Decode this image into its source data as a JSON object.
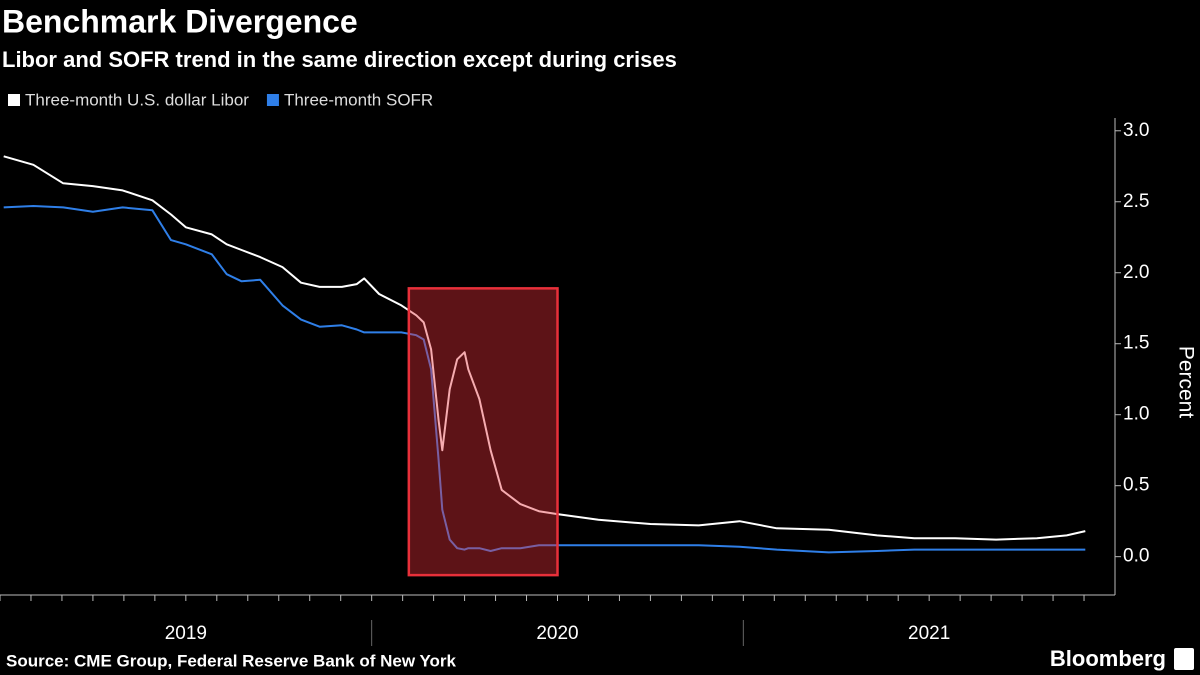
{
  "chart_data": {
    "type": "line",
    "title": "Benchmark Divergence",
    "subtitle": "Libor and SOFR trend in the same direction except during crises",
    "y_label": "Percent",
    "source": "Source: CME Group, Federal Reserve Bank of New York",
    "brand": "Bloomberg",
    "x": [
      2019.01,
      2019.09,
      2019.17,
      2019.25,
      2019.33,
      2019.41,
      2019.46,
      2019.5,
      2019.57,
      2019.61,
      2019.65,
      2019.7,
      2019.76,
      2019.81,
      2019.86,
      2019.92,
      2019.96,
      2019.98,
      2020.02,
      2020.08,
      2020.12,
      2020.14,
      2020.16,
      2020.18,
      2020.19,
      2020.21,
      2020.23,
      2020.25,
      2020.26,
      2020.29,
      2020.32,
      2020.35,
      2020.4,
      2020.45,
      2020.5,
      2020.61,
      2020.75,
      2020.88,
      2020.99,
      2021.09,
      2021.23,
      2021.36,
      2021.46,
      2021.57,
      2021.68,
      2021.79,
      2021.87,
      2021.92
    ],
    "series": [
      {
        "name": "Three-month U.S. dollar Libor",
        "color": "#ffffff",
        "values": [
          2.82,
          2.76,
          2.63,
          2.61,
          2.58,
          2.51,
          2.41,
          2.32,
          2.27,
          2.2,
          2.16,
          2.11,
          2.04,
          1.93,
          1.9,
          1.9,
          1.92,
          1.96,
          1.85,
          1.77,
          1.7,
          1.65,
          1.46,
          0.96,
          0.75,
          1.18,
          1.39,
          1.44,
          1.32,
          1.11,
          0.75,
          0.47,
          0.37,
          0.32,
          0.3,
          0.26,
          0.23,
          0.22,
          0.25,
          0.2,
          0.19,
          0.15,
          0.13,
          0.13,
          0.12,
          0.13,
          0.15,
          0.18
        ]
      },
      {
        "name": "Three-month SOFR",
        "color": "#2f7fe8",
        "values": [
          2.46,
          2.47,
          2.46,
          2.43,
          2.46,
          2.44,
          2.23,
          2.2,
          2.13,
          1.99,
          1.94,
          1.95,
          1.77,
          1.67,
          1.62,
          1.63,
          1.6,
          1.58,
          1.58,
          1.58,
          1.56,
          1.53,
          1.32,
          0.68,
          0.33,
          0.12,
          0.06,
          0.05,
          0.06,
          0.06,
          0.04,
          0.06,
          0.06,
          0.08,
          0.08,
          0.08,
          0.08,
          0.08,
          0.07,
          0.05,
          0.03,
          0.04,
          0.05,
          0.05,
          0.05,
          0.05,
          0.05,
          0.05
        ]
      }
    ],
    "xlim": [
      2019,
      2022
    ],
    "xticks": [
      {
        "value": 2019.5,
        "label": "2019"
      },
      {
        "value": 2020.5,
        "label": "2020"
      },
      {
        "value": 2021.5,
        "label": "2021"
      }
    ],
    "ylim": [
      -0.27,
      3.09
    ],
    "yticks": [
      {
        "value": 0,
        "label": "0.0"
      },
      0.5,
      {
        "value": 1,
        "label": "1.0"
      },
      1.5,
      {
        "value": 2,
        "label": "2.0"
      },
      2.5,
      {
        "value": 3,
        "label": "3.0"
      }
    ],
    "highlight": {
      "xlim": [
        2020.1,
        2020.5
      ],
      "ylim": [
        -0.13,
        1.89
      ],
      "color": "#e8303a"
    }
  }
}
